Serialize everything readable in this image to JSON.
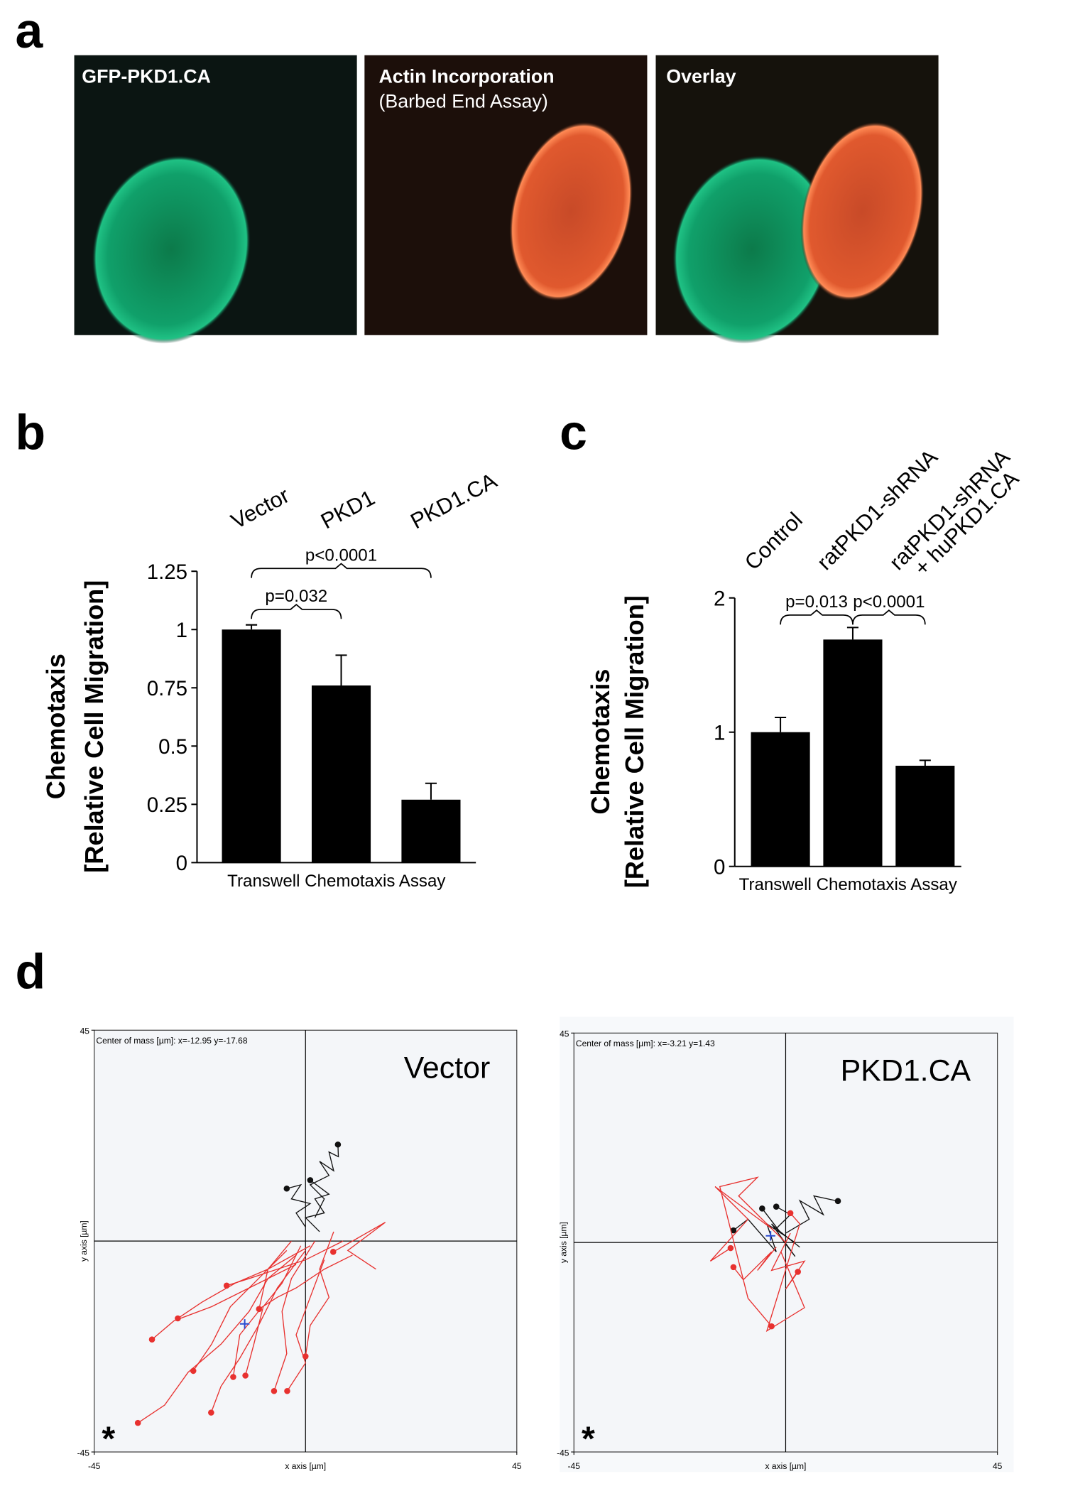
{
  "panel_labels": [
    "a",
    "b",
    "c",
    "d"
  ],
  "images": [
    {
      "title": "GFP-PKD1.CA"
    },
    {
      "title": "Actin Incorporation",
      "subtitle": "(Barbed End Assay)"
    },
    {
      "title": "Overlay"
    }
  ],
  "chart_data": [
    {
      "type": "bar",
      "categories": [
        "Vector",
        "PKD1",
        "PKD1.CA"
      ],
      "values": [
        1,
        0.76,
        0.27
      ],
      "errors": [
        0.02,
        0.13,
        0.07
      ],
      "color": "#000000",
      "ylim": [
        0,
        1.25
      ],
      "yticks": [
        0,
        0.25,
        0.5,
        0.75,
        1,
        1.25
      ],
      "y_label": [
        "Chemotaxis",
        "[Relative Cell Migration]"
      ],
      "x_label": "Transwell Chemotaxis Assay",
      "annotations": [
        "p=0.032",
        "p<0.0001"
      ]
    },
    {
      "type": "bar",
      "categories": [
        "Control",
        "ratPKD1-shRNA",
        [
          "ratPKD1-shRNA",
          "+ huPKD1.CA"
        ]
      ],
      "values": [
        1,
        1.69,
        0.75
      ],
      "errors": [
        0.11,
        0.09,
        0.04
      ],
      "color": "#000000",
      "ylim": [
        0,
        2
      ],
      "yticks": [
        0,
        1,
        2
      ],
      "y_label": [
        "Chemotaxis",
        "[Relative Cell Migration]"
      ],
      "x_label": "Transwell Chemotaxis Assay",
      "annotations": [
        "p=0.013",
        "p<0.0001"
      ]
    },
    {
      "type": "scatter",
      "title": "Vector",
      "annotation": "Center of mass [µm]: x=-12.95 y=-17.68",
      "marker": "*",
      "center_of_mass": [
        -12.95,
        -17.68
      ],
      "xlim": [
        -45,
        45
      ],
      "ylim": [
        -45,
        45
      ],
      "xticks": [
        -45,
        45
      ],
      "yticks": [
        -45,
        45
      ],
      "x_label": "x axis [µm]",
      "y_label": "y axis [µm]",
      "tracks": [
        {
          "color": "#111111",
          "x": [
            2,
            4,
            1,
            5,
            3,
            6,
            5,
            7,
            6.9
          ],
          "y": [
            5,
            9,
            12,
            14,
            17,
            15,
            19,
            18,
            20.6
          ]
        },
        {
          "color": "#111111",
          "x": [
            0,
            -2,
            1,
            -3,
            -1,
            -4
          ],
          "y": [
            3,
            6,
            8,
            9,
            12,
            11.2
          ]
        },
        {
          "color": "#111111",
          "x": [
            3,
            0,
            4,
            2,
            5,
            1
          ],
          "y": [
            2,
            5,
            6,
            9,
            10,
            13
          ]
        },
        {
          "color": "#e8312f",
          "x": [
            -2,
            -8,
            -12,
            -18,
            -25,
            -30,
            -35.7
          ],
          "y": [
            -3,
            -8,
            -15,
            -22,
            -28,
            -35,
            -38.8
          ]
        },
        {
          "color": "#e8312f",
          "x": [
            0,
            -6,
            -10,
            -14,
            -18,
            -20.1
          ],
          "y": [
            -2,
            -10,
            -18,
            -25,
            -31,
            -36.6
          ]
        },
        {
          "color": "#e8312f",
          "x": [
            2,
            -3,
            -5,
            -4,
            -6.7
          ],
          "y": [
            0,
            -8,
            -15,
            -24,
            -32
          ]
        },
        {
          "color": "#e8312f",
          "x": [
            4,
            1,
            -2,
            0,
            -3.9
          ],
          "y": [
            -4,
            -12,
            -20,
            -26,
            -32
          ]
        },
        {
          "color": "#e8312f",
          "x": [
            6,
            3,
            5,
            1,
            0
          ],
          "y": [
            2,
            -6,
            -12,
            -18,
            -24.6
          ]
        },
        {
          "color": "#e8312f",
          "x": [
            -1,
            -5,
            -9,
            -11,
            -12.8
          ],
          "y": [
            -1,
            -9,
            -14,
            -22,
            -28.7
          ]
        },
        {
          "color": "#e8312f",
          "x": [
            -3,
            -8,
            -10,
            -14,
            -15.4
          ],
          "y": [
            0,
            -6,
            -15,
            -20,
            -29
          ]
        },
        {
          "color": "#e8312f",
          "x": [
            -4,
            -10,
            -16,
            -20,
            -23.9
          ],
          "y": [
            -2,
            -8,
            -14,
            -22,
            -27.7
          ]
        },
        {
          "color": "#e8312f",
          "x": [
            -2,
            -12,
            -20,
            -28,
            -32.7
          ],
          "y": [
            -5,
            -10,
            -14,
            -17,
            -21
          ]
        },
        {
          "color": "#e8312f",
          "x": [
            1,
            -8,
            -15,
            -22,
            -27.2
          ],
          "y": [
            -1,
            -6,
            -9,
            -13,
            -16.5
          ]
        },
        {
          "color": "#e8312f",
          "x": [
            8,
            0,
            -6,
            -12,
            -16.8
          ],
          "y": [
            0,
            -4,
            -6,
            -8,
            -9.5
          ]
        },
        {
          "color": "#e8312f",
          "x": [
            10,
            4,
            -2,
            -6,
            -9.9
          ],
          "y": [
            -3,
            -6,
            -10,
            -12,
            -14.5
          ]
        },
        {
          "color": "#e8312f",
          "x": [
            15,
            9,
            17,
            10,
            5.9
          ],
          "y": [
            -6,
            -2,
            4,
            0,
            -2.3
          ]
        }
      ]
    },
    {
      "type": "scatter",
      "title": "PKD1.CA",
      "annotation": "Center of mass [µm]: x=-3.21 y=1.43",
      "marker": "*",
      "center_of_mass": [
        -3.21,
        1.43
      ],
      "xlim": [
        -45,
        45
      ],
      "ylim": [
        -45,
        45
      ],
      "xticks": [
        -45,
        45
      ],
      "yticks": [
        -45,
        45
      ],
      "x_label": "x axis [µm]",
      "y_label": "y axis [µm]",
      "tracks": [
        {
          "color": "#111111",
          "x": [
            0,
            5,
            3,
            8,
            6,
            11.1
          ],
          "y": [
            2,
            5,
            9,
            6,
            10,
            8.9
          ]
        },
        {
          "color": "#111111",
          "x": [
            2,
            -4,
            -2,
            -8,
            -11.1
          ],
          "y": [
            0,
            4,
            -2,
            5,
            2.6
          ]
        },
        {
          "color": "#111111",
          "x": [
            -1,
            2,
            -3,
            -1,
            -5
          ],
          "y": [
            1,
            -3,
            4,
            2,
            7.3
          ]
        },
        {
          "color": "#111111",
          "x": [
            3,
            -2,
            1,
            -2
          ],
          "y": [
            -1,
            3,
            6,
            7.7
          ]
        },
        {
          "color": "#e8312f",
          "x": [
            -2,
            -6,
            -3,
            -9,
            -11.1
          ],
          "y": [
            -1,
            -6,
            -2,
            -8,
            -5.3
          ]
        },
        {
          "color": "#e8312f",
          "x": [
            1,
            -3,
            4,
            0,
            2.6
          ],
          "y": [
            2,
            -6,
            -4,
            -10,
            -6.3
          ]
        },
        {
          "color": "#e8312f",
          "x": [
            -3,
            -15,
            -8,
            -16,
            -11.7
          ],
          "y": [
            3,
            12,
            5,
            -4,
            -1.2
          ]
        },
        {
          "color": "#e8312f",
          "x": [
            -1,
            4,
            -4,
            3,
            1
          ],
          "y": [
            -2,
            -14,
            -19,
            4,
            6.3
          ]
        },
        {
          "color": "#e8312f",
          "x": [
            0,
            -10,
            -6,
            -14,
            -8,
            -3
          ],
          "y": [
            0,
            10,
            14,
            12,
            -12,
            -18
          ]
        }
      ]
    }
  ]
}
